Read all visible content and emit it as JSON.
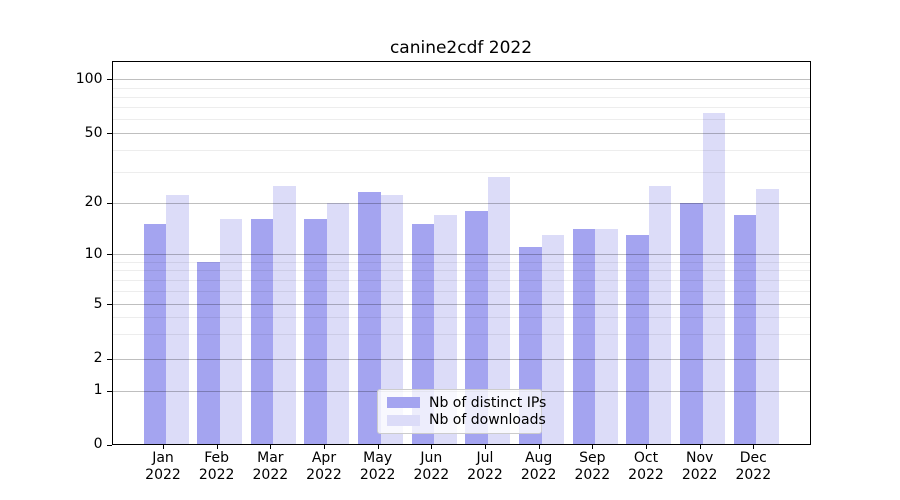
{
  "title": "canine2cdf 2022",
  "chart_data": {
    "type": "bar",
    "title": "canine2cdf 2022",
    "categories": [
      "Jan",
      "Feb",
      "Mar",
      "Apr",
      "May",
      "Jun",
      "Jul",
      "Aug",
      "Sep",
      "Oct",
      "Nov",
      "Dec"
    ],
    "year": "2022",
    "series": [
      {
        "name": "Nb of distinct IPs",
        "color": "#a4a4f0",
        "values": [
          15,
          9,
          16,
          16,
          23,
          15,
          18,
          11,
          14,
          13,
          20,
          17
        ]
      },
      {
        "name": "Nb of downloads",
        "color": "#dcdcf8",
        "values": [
          22,
          16,
          25,
          20,
          22,
          17,
          28,
          13,
          14,
          25,
          65,
          24
        ]
      }
    ],
    "xlabel": "",
    "ylabel": "",
    "yscale": "symlog",
    "ylim": [
      0,
      120
    ],
    "yticks": [
      0,
      1,
      2,
      5,
      10,
      20,
      50,
      100
    ],
    "minor_gridlines": [
      3,
      4,
      6,
      7,
      8,
      9,
      30,
      40,
      60,
      70,
      80,
      90
    ],
    "grid": true,
    "legend_position": "lower center"
  }
}
